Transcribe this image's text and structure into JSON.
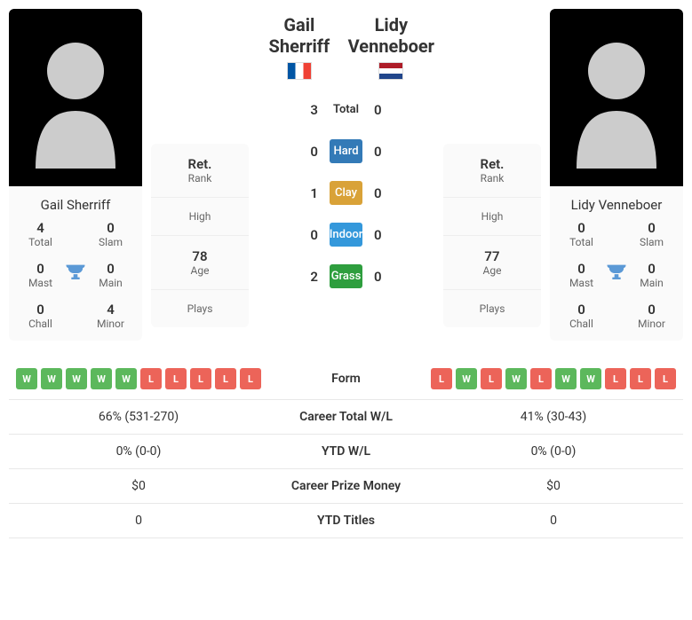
{
  "players": {
    "left": {
      "name": "Gail Sherriff",
      "flag_colors": [
        "#0055a4",
        "#ffffff",
        "#ef4135"
      ],
      "titles": {
        "total": "4",
        "slam": "0",
        "mast": "0",
        "main": "0",
        "chall": "0",
        "minor": "4"
      },
      "rank": {
        "rank_v": "Ret.",
        "rank_l": "Rank",
        "high_v": "",
        "high_l": "High",
        "age_v": "78",
        "age_l": "Age",
        "plays_v": "",
        "plays_l": "Plays"
      }
    },
    "right": {
      "name": "Lidy Venneboer",
      "flag_colors": [
        "#ae1c28",
        "#ffffff",
        "#21468b"
      ],
      "titles": {
        "total": "0",
        "slam": "0",
        "mast": "0",
        "main": "0",
        "chall": "0",
        "minor": "0"
      },
      "rank": {
        "rank_v": "Ret.",
        "rank_l": "Rank",
        "high_v": "",
        "high_l": "High",
        "age_v": "77",
        "age_l": "Age",
        "plays_v": "",
        "plays_l": "Plays"
      }
    }
  },
  "h2h": {
    "total": {
      "l": "3",
      "label": "Total",
      "r": "0"
    },
    "surfaces": [
      {
        "l": "0",
        "label": "Hard",
        "r": "0",
        "color": "#337ab7"
      },
      {
        "l": "1",
        "label": "Clay",
        "r": "0",
        "color": "#d9a238"
      },
      {
        "l": "0",
        "label": "Indoor",
        "r": "0",
        "color": "#3498db"
      },
      {
        "l": "2",
        "label": "Grass",
        "r": "0",
        "color": "#2e9e3e"
      }
    ]
  },
  "form": {
    "label": "Form",
    "left": [
      "W",
      "W",
      "W",
      "W",
      "W",
      "L",
      "L",
      "L",
      "L",
      "L"
    ],
    "right": [
      "L",
      "W",
      "L",
      "W",
      "L",
      "W",
      "W",
      "L",
      "L",
      "L"
    ]
  },
  "rows": [
    {
      "l": "66% (531-270)",
      "label": "Career Total W/L",
      "r": "41% (30-43)"
    },
    {
      "l": "0% (0-0)",
      "label": "YTD W/L",
      "r": "0% (0-0)"
    },
    {
      "l": "$0",
      "label": "Career Prize Money",
      "r": "$0"
    },
    {
      "l": "0",
      "label": "YTD Titles",
      "r": "0"
    }
  ],
  "labels": {
    "total": "Total",
    "slam": "Slam",
    "mast": "Mast",
    "main": "Main",
    "chall": "Chall",
    "minor": "Minor"
  }
}
